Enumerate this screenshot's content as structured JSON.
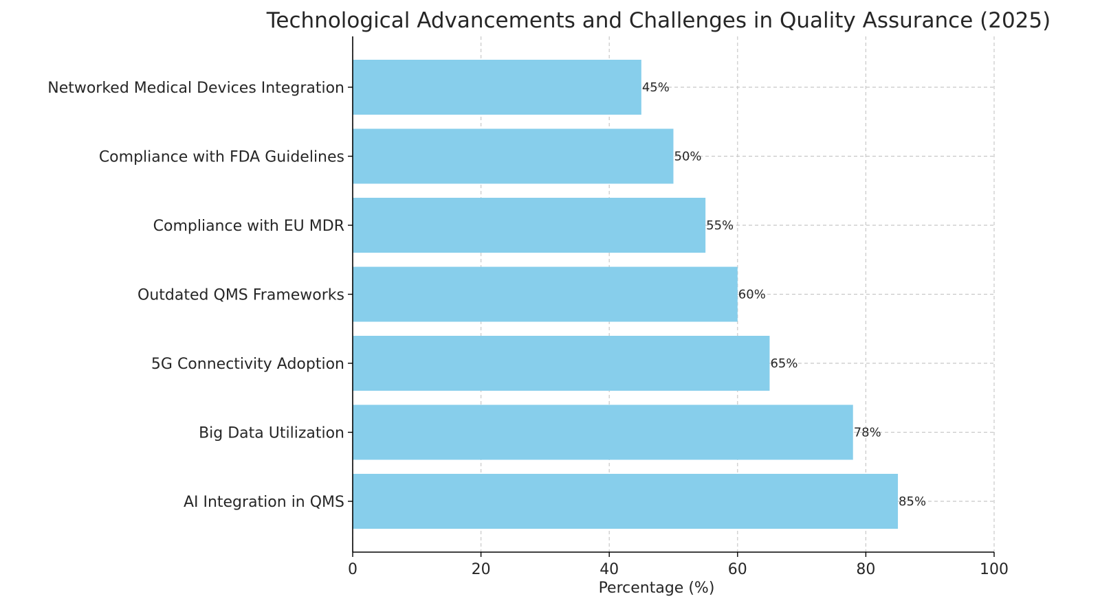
{
  "chart_data": {
    "type": "bar",
    "orientation": "horizontal",
    "title": "Technological Advancements and Challenges in Quality Assurance (2025)",
    "xlabel": "Percentage (%)",
    "ylabel": "",
    "xlim": [
      0,
      100
    ],
    "xticks": [
      0,
      20,
      40,
      60,
      80,
      100
    ],
    "grid": true,
    "bar_color": "#87CEEB",
    "categories": [
      "AI Integration in QMS",
      "Big Data Utilization",
      "5G Connectivity Adoption",
      "Outdated QMS Frameworks",
      "Compliance with EU MDR",
      "Compliance with FDA Guidelines",
      "Networked Medical Devices Integration"
    ],
    "values": [
      85,
      78,
      65,
      60,
      55,
      50,
      45
    ],
    "value_labels": [
      "85%",
      "78%",
      "65%",
      "60%",
      "55%",
      "50%",
      "45%"
    ]
  }
}
